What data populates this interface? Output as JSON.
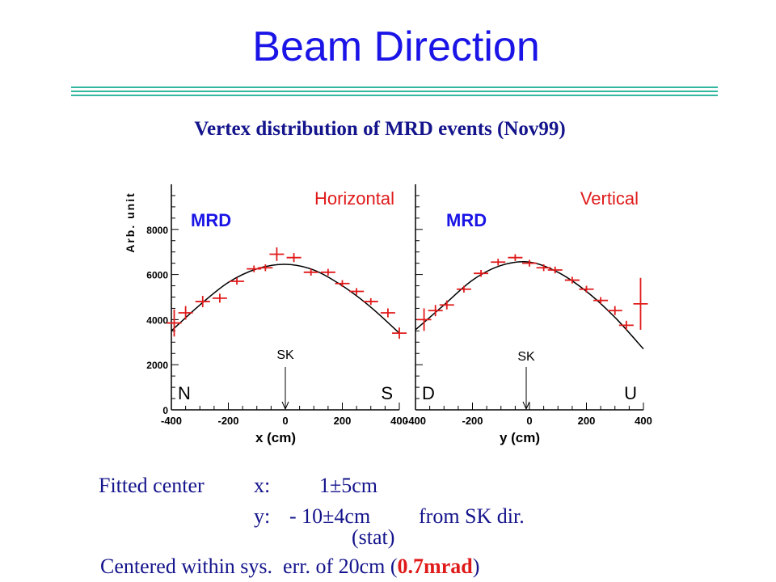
{
  "slide": {
    "title": "Beam Direction",
    "subtitle": "Vertex distribution of MRD events (Nov99)"
  },
  "colors": {
    "title": "#1a14e6",
    "subtitle": "#14148c",
    "rule": "#33b6a0",
    "data_points": "#e01a1a",
    "panel_title": "#e01a1a",
    "mrd_label": "#1a14e6"
  },
  "chart_data": [
    {
      "type": "scatter",
      "title": "Horizontal",
      "label": "MRD",
      "xlabel": "x (cm)",
      "ylabel": "Arb. unit",
      "xlim": [
        -400,
        400
      ],
      "ylim": [
        0,
        10000
      ],
      "xticks": [
        "-400",
        "-200",
        "0",
        "200",
        "400"
      ],
      "yticks": [
        "0",
        "2000",
        "4000",
        "6000",
        "8000"
      ],
      "left_edge_label": "N",
      "right_edge_label": "S",
      "marker_label": "SK",
      "marker_x": 0,
      "series": [
        {
          "kind": "data",
          "x": [
            -390,
            -350,
            -290,
            -230,
            -170,
            -110,
            -70,
            -30,
            30,
            90,
            150,
            200,
            250,
            300,
            360,
            400
          ],
          "y": [
            3850,
            4300,
            4800,
            4950,
            5700,
            6250,
            6300,
            6900,
            6750,
            6100,
            6100,
            5600,
            5250,
            4800,
            4300,
            3400
          ],
          "yerr": [
            600,
            300,
            250,
            200,
            150,
            150,
            150,
            300,
            200,
            150,
            150,
            150,
            150,
            150,
            200,
            250
          ]
        },
        {
          "kind": "fit",
          "x": [
            -400,
            -300,
            -200,
            -100,
            0,
            100,
            200,
            300,
            400
          ],
          "y": [
            3500,
            4650,
            5650,
            6250,
            6450,
            6200,
            5500,
            4550,
            3400
          ]
        }
      ]
    },
    {
      "type": "scatter",
      "title": "Vertical",
      "label": "MRD",
      "xlabel": "y (cm)",
      "ylabel": "",
      "xlim": [
        -400,
        400
      ],
      "ylim": [
        0,
        10000
      ],
      "xticks": [
        "-400",
        "-200",
        "0",
        "200",
        "400"
      ],
      "yticks": [],
      "left_edge_label": "D",
      "right_edge_label": "U",
      "marker_label": "SK",
      "marker_x": 0,
      "series": [
        {
          "kind": "data",
          "x": [
            -370,
            -330,
            -290,
            -230,
            -170,
            -110,
            -50,
            0,
            50,
            90,
            150,
            200,
            250,
            300,
            340,
            390
          ],
          "y": [
            4000,
            4400,
            4650,
            5350,
            6050,
            6550,
            6750,
            6500,
            6300,
            6200,
            5750,
            5350,
            4850,
            4400,
            3750,
            4700
          ],
          "yerr": [
            500,
            250,
            200,
            150,
            150,
            150,
            150,
            150,
            150,
            150,
            150,
            150,
            150,
            200,
            200,
            1150
          ]
        },
        {
          "kind": "fit",
          "x": [
            -400,
            -300,
            -200,
            -100,
            0,
            100,
            200,
            300,
            400
          ],
          "y": [
            3550,
            4650,
            5750,
            6400,
            6550,
            6100,
            5250,
            4100,
            2700
          ]
        }
      ]
    }
  ],
  "fit_result": {
    "line1_label": "Fitted center",
    "line1_axis": "x:",
    "line1_value": "1±5cm",
    "line2_axis": "y:",
    "line2_value": "- 10±4cm",
    "line2_suffix": "from SK dir.",
    "line3_stat": "(stat)",
    "line4_prefix": "Centered within sys.  err. of 20cm (",
    "line4_highlight": "0.7mrad",
    "line4_suffix": ")"
  }
}
